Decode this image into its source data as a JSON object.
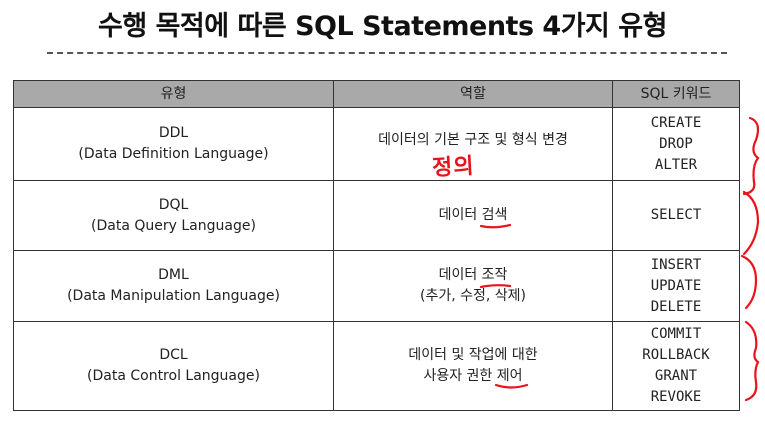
{
  "title": "수행 목적에 따른 SQL Statements 4가지 유형",
  "table": {
    "headers": [
      "유형",
      "역할",
      "SQL 키워드"
    ],
    "rows": [
      {
        "type_abbr": "DDL",
        "type_full": "(Data Definition Language)",
        "role_lines": [
          "데이터의 기본 구조 및 형식 변경"
        ],
        "keywords": [
          "CREATE",
          "DROP",
          "ALTER"
        ]
      },
      {
        "type_abbr": "DQL",
        "type_full": "(Data Query Language)",
        "role_prefix": "데이터 ",
        "role_mark": "검색",
        "keywords": [
          "SELECT"
        ]
      },
      {
        "type_abbr": "DML",
        "type_full": "(Data Manipulation Language)",
        "role_prefix": "데이터 ",
        "role_mark": "조작",
        "role_line2": "(추가, 수정, 삭제)",
        "keywords": [
          "INSERT",
          "UPDATE",
          "DELETE"
        ]
      },
      {
        "type_abbr": "DCL",
        "type_full": "(Data Control Language)",
        "role_line1": "데이터 및 작업에 대한",
        "role_prefix2": "사용자 권한 ",
        "role_mark": "제어",
        "keywords": [
          "COMMIT",
          "ROLLBACK",
          "GRANT",
          "REVOKE"
        ]
      }
    ]
  },
  "annotation": {
    "handwritten_text": "정의",
    "color": "#e8141c"
  },
  "colors": {
    "header_bg": "#a9a9a9",
    "border": "#333333",
    "annotation_red": "#e8141c"
  }
}
